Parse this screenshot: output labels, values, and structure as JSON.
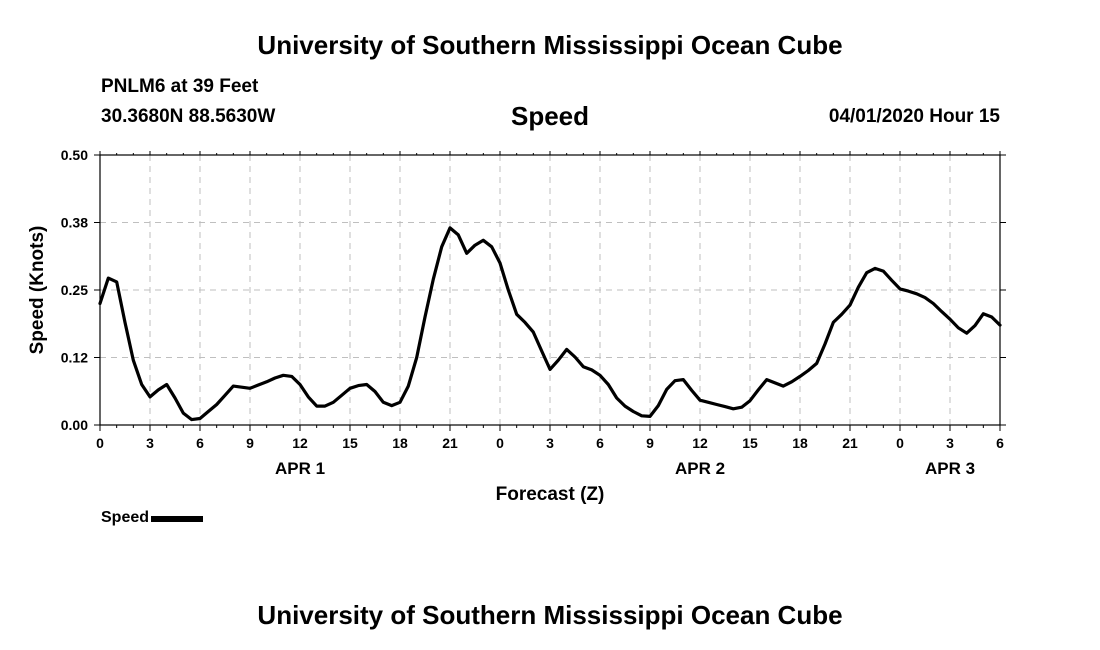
{
  "header": {
    "title": "University of Southern Mississippi Ocean Cube",
    "station": "PNLM6 at 39 Feet",
    "coords": "30.3680N 88.5630W",
    "date": "04/01/2020 Hour 15"
  },
  "footer": {
    "title": "University of Southern Mississippi Ocean Cube"
  },
  "legend": {
    "label": "Speed",
    "color": "#000000"
  },
  "chart_data": {
    "type": "line",
    "title": "Speed",
    "xlabel": "Forecast (Z)",
    "ylabel": "Speed (Knots)",
    "xlim": [
      0,
      54
    ],
    "ylim": [
      0,
      0.5
    ],
    "y_ticks": [
      "0.00",
      "0.12",
      "0.25",
      "0.38",
      "0.50"
    ],
    "x_ticks": [
      "0",
      "3",
      "6",
      "9",
      "12",
      "15",
      "18",
      "21",
      "0",
      "3",
      "6",
      "9",
      "12",
      "15",
      "18",
      "21",
      "0",
      "3",
      "6"
    ],
    "day_labels": [
      {
        "label": "APR 1",
        "x": 12
      },
      {
        "label": "APR 2",
        "x": 36
      },
      {
        "label": "APR 3",
        "x": 51
      }
    ],
    "grid": true,
    "legend_position": "bottom-left",
    "series": [
      {
        "name": "Speed",
        "color": "#000000",
        "x": [
          0,
          0.5,
          1,
          1.5,
          2,
          2.5,
          3,
          3.5,
          4,
          4.5,
          5,
          5.5,
          6,
          6.5,
          7,
          7.5,
          8,
          8.5,
          9,
          9.5,
          10,
          10.5,
          11,
          11.5,
          12,
          12.5,
          13,
          13.5,
          14,
          14.5,
          15,
          15.5,
          16,
          16.5,
          17,
          17.5,
          18,
          18.5,
          19,
          19.5,
          20,
          20.5,
          21,
          21.5,
          22,
          22.5,
          23,
          23.5,
          24,
          24.5,
          25,
          25.5,
          26,
          26.5,
          27,
          27.5,
          28,
          28.5,
          29,
          29.5,
          30,
          30.5,
          31,
          31.5,
          32,
          32.5,
          33,
          33.5,
          34,
          34.5,
          35,
          35.5,
          36,
          36.5,
          37,
          37.5,
          38,
          38.5,
          39,
          39.5,
          40,
          40.5,
          41,
          41.5,
          42,
          42.5,
          43,
          43.5,
          44,
          44.5,
          45,
          45.5,
          46,
          46.5,
          47,
          47.5,
          48,
          48.5,
          49,
          49.5,
          50,
          50.5,
          51,
          51.5,
          52,
          52.5,
          53,
          53.5,
          54
        ],
        "values": [
          0.225,
          0.272,
          0.265,
          0.19,
          0.12,
          0.075,
          0.052,
          0.065,
          0.075,
          0.05,
          0.022,
          0.01,
          0.012,
          0.025,
          0.038,
          0.055,
          0.072,
          0.07,
          0.068,
          0.074,
          0.08,
          0.087,
          0.092,
          0.09,
          0.075,
          0.052,
          0.035,
          0.035,
          0.042,
          0.055,
          0.068,
          0.073,
          0.075,
          0.062,
          0.042,
          0.036,
          0.042,
          0.072,
          0.125,
          0.2,
          0.27,
          0.33,
          0.365,
          0.352,
          0.318,
          0.333,
          0.342,
          0.33,
          0.3,
          0.25,
          0.205,
          0.19,
          0.172,
          0.137,
          0.103,
          0.12,
          0.14,
          0.126,
          0.108,
          0.102,
          0.092,
          0.075,
          0.05,
          0.035,
          0.025,
          0.017,
          0.016,
          0.036,
          0.066,
          0.082,
          0.084,
          0.064,
          0.046,
          0.042,
          0.038,
          0.034,
          0.03,
          0.033,
          0.045,
          0.065,
          0.084,
          0.078,
          0.072,
          0.08,
          0.09,
          0.101,
          0.114,
          0.15,
          0.19,
          0.205,
          0.222,
          0.255,
          0.282,
          0.29,
          0.285,
          0.268,
          0.252,
          0.248,
          0.243,
          0.236,
          0.225,
          0.21,
          0.196,
          0.18,
          0.17,
          0.184,
          0.206,
          0.2,
          0.185
        ]
      }
    ]
  }
}
